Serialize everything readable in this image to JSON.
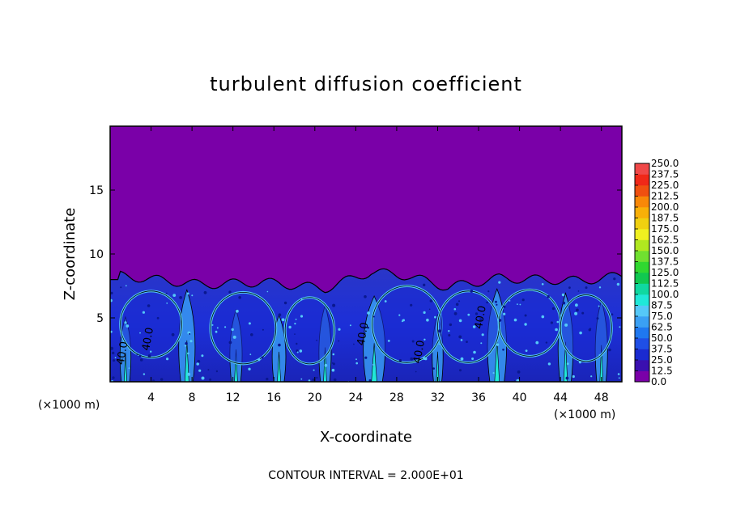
{
  "chart_data": {
    "type": "heatmap",
    "title": "turbulent diffusion coefficient",
    "xlabel": "X-coordinate",
    "ylabel": "Z-coordinate",
    "x_unit": "(×1000 m)",
    "z_unit": "(×1000 m)",
    "xlim": [
      0,
      50
    ],
    "ylim": [
      0,
      20
    ],
    "x_ticks": [
      4,
      8,
      12,
      16,
      20,
      24,
      28,
      32,
      36,
      40,
      44,
      48
    ],
    "y_ticks": [
      5,
      10,
      15
    ],
    "colorbar": {
      "levels": [
        0.0,
        12.5,
        25.0,
        37.5,
        50.0,
        62.5,
        75.0,
        87.5,
        100.0,
        112.5,
        125.0,
        137.5,
        150.0,
        162.5,
        175.0,
        187.5,
        200.0,
        212.5,
        225.0,
        237.5,
        250.0
      ],
      "labels": [
        "0.0",
        "12.5",
        "25.0",
        "37.5",
        "50.0",
        "62.5",
        "75.0",
        "87.5",
        "100.0",
        "112.5",
        "125.0",
        "137.5",
        "150.0",
        "162.5",
        "175.0",
        "187.5",
        "200.0",
        "212.5",
        "225.0",
        "237.5",
        "250.0"
      ],
      "colors": [
        "#7a00a8",
        "#3a10b0",
        "#1a2ad0",
        "#1f4fe6",
        "#1f78f0",
        "#3aa0f4",
        "#55c8f8",
        "#20e8d8",
        "#10d8a0",
        "#10c850",
        "#30d830",
        "#70e030",
        "#b0e820",
        "#f0f020",
        "#f0d010",
        "#f8b008",
        "#f88808",
        "#f05010",
        "#f02818",
        "#f04848"
      ]
    },
    "background_value": 0.0,
    "boundary_layer_top_approx": 8.0,
    "contour_labels": [
      {
        "x": 1.5,
        "z": 2.2,
        "text": "40.0"
      },
      {
        "x": 4.0,
        "z": 3.3,
        "text": "40.0"
      },
      {
        "x": 25.0,
        "z": 3.7,
        "text": "40.0"
      },
      {
        "x": 30.5,
        "z": 2.3,
        "text": "40.0"
      },
      {
        "x": 36.5,
        "z": 5.0,
        "text": "40.0"
      }
    ],
    "contour_interval_note": "CONTOUR INTERVAL = 2.000E+01"
  }
}
